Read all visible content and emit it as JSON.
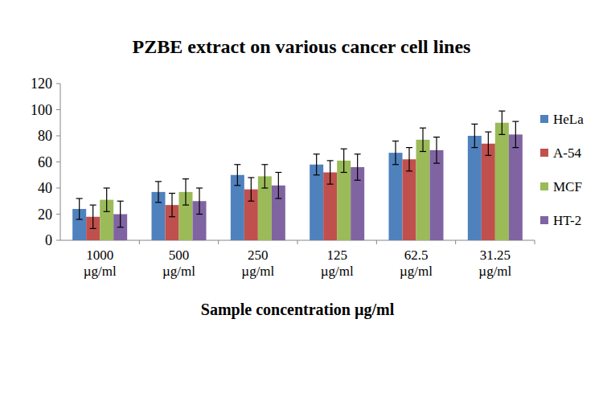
{
  "chart_data": {
    "type": "bar",
    "title": "PZBE extract on various cancer cell lines",
    "x_label": "Sample concentration µg/ml",
    "categories": [
      "1000 µg/ml",
      "500 µg/ml",
      "250 µg/ml",
      "125 µg/ml",
      "62.5 µg/ml",
      "31.25 µg/ml"
    ],
    "series": [
      {
        "name": "HeLa",
        "color": "#4f81bd",
        "values": [
          24,
          37,
          50,
          58,
          67,
          80
        ],
        "errors": [
          8,
          8,
          8,
          8,
          9,
          9
        ]
      },
      {
        "name": "A-54",
        "color": "#c0504d",
        "values": [
          18,
          27,
          39,
          52,
          62,
          74
        ],
        "errors": [
          9,
          9,
          9,
          9,
          9,
          9
        ]
      },
      {
        "name": "MCF",
        "color": "#9bbb59",
        "values": [
          31,
          37,
          49,
          61,
          77,
          90
        ],
        "errors": [
          9,
          10,
          9,
          9,
          9,
          9
        ]
      },
      {
        "name": "HT-2",
        "color": "#8064a2",
        "values": [
          20,
          30,
          42,
          56,
          69,
          81
        ],
        "errors": [
          10,
          10,
          10,
          10,
          10,
          10
        ]
      }
    ],
    "ylim": [
      0,
      120
    ],
    "yticks": [
      0,
      20,
      40,
      60,
      80,
      100,
      120
    ],
    "grid": false,
    "legend": "right"
  }
}
